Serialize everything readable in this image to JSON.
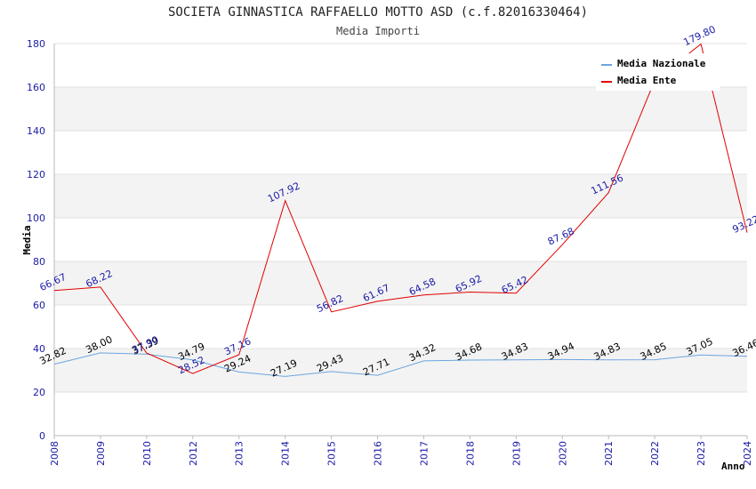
{
  "chart_data": {
    "type": "line",
    "title": "SOCIETA GINNASTICA RAFFAELLO MOTTO ASD (c.f.82016330464)",
    "subtitle": "Media Importi",
    "xlabel": "Anno",
    "ylabel": "Media",
    "ylim": [
      0,
      180
    ],
    "yticks": [
      "0",
      "20",
      "40",
      "60",
      "80",
      "100",
      "120",
      "140",
      "160",
      "180"
    ],
    "categories": [
      "2008",
      "2009",
      "2010",
      "2012",
      "2013",
      "2014",
      "2015",
      "2016",
      "2017",
      "2018",
      "2019",
      "2020",
      "2021",
      "2022",
      "2023",
      "2024"
    ],
    "grid": true,
    "legend_position": "top-right",
    "series": [
      {
        "name": "Media Nazionale",
        "color": "#6aa6e0",
        "values": [
          32.82,
          38.0,
          37.39,
          34.79,
          29.24,
          27.19,
          29.43,
          27.71,
          34.32,
          34.68,
          34.83,
          34.94,
          34.83,
          34.85,
          37.05,
          36.46
        ],
        "labels": [
          "32.82",
          "38.00",
          "37.39",
          "34.79",
          "29.24",
          "27.19",
          "29.43",
          "27.71",
          "34.32",
          "34.68",
          "34.83",
          "34.94",
          "34.83",
          "34.85",
          "37.05",
          "36.46"
        ]
      },
      {
        "name": "Media Ente",
        "color": "#e00000",
        "values": [
          66.67,
          68.22,
          37.9,
          28.52,
          37.16,
          107.92,
          56.82,
          61.67,
          64.58,
          65.92,
          65.42,
          87.68,
          111.56,
          163.0,
          179.8,
          93.22
        ],
        "labels": [
          "66.67",
          "68.22",
          "37.90",
          "28.52",
          "37.16",
          "107.92",
          "56.82",
          "61.67",
          "64.58",
          "65.92",
          "65.42",
          "87.68",
          "111.56",
          "",
          "179.80",
          "93.22"
        ]
      }
    ]
  }
}
